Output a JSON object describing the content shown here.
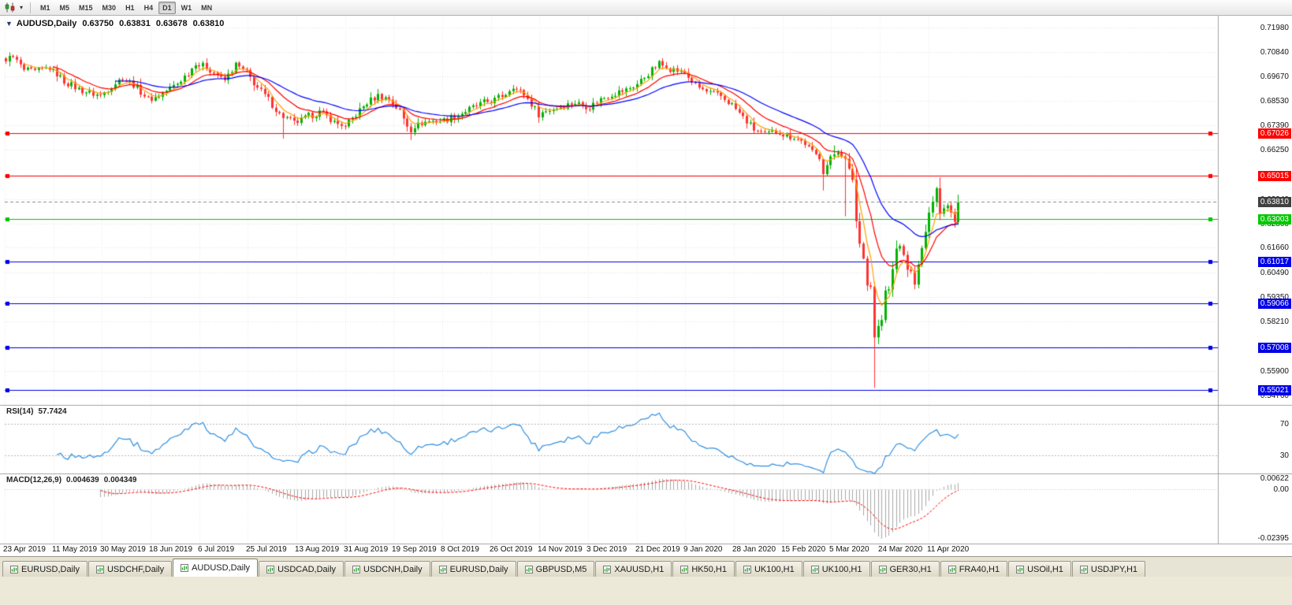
{
  "toolbar": {
    "chart_type_icon": "candlestick-chart-icon",
    "dropdown_icon": "chevron-down-icon",
    "timeframes": [
      "M1",
      "M5",
      "M15",
      "M30",
      "H1",
      "H4",
      "D1",
      "W1",
      "MN"
    ],
    "active_timeframe": "D1"
  },
  "chart_header": {
    "symbol": "AUDUSD,Daily",
    "open": "0.63750",
    "high": "0.63831",
    "low": "0.63678",
    "close": "0.63810"
  },
  "price_axis": {
    "labels": [
      "0.71980",
      "0.70840",
      "0.69670",
      "0.68530",
      "0.67390",
      "0.66250",
      "0.65080",
      "0.63940",
      "0.62800",
      "0.61660",
      "0.60490",
      "0.59350",
      "0.58210",
      "0.57040",
      "0.55900",
      "0.54760"
    ]
  },
  "current_price": {
    "label": "0.63810",
    "value": 0.6381,
    "line_color": "#8a8a8a",
    "badge_color": "#404040"
  },
  "levels": [
    {
      "label": "0.67026",
      "value": 0.67026,
      "color": "#FF0000"
    },
    {
      "label": "0.65015",
      "value": 0.65015,
      "color": "#FF0000"
    },
    {
      "label": "0.63003",
      "value": 0.63003,
      "color": "#00C800"
    },
    {
      "label": "0.61017",
      "value": 0.61017,
      "color": "#0000E6"
    },
    {
      "label": "0.59066",
      "value": 0.59066,
      "color": "#0000E6"
    },
    {
      "label": "0.57008",
      "value": 0.57008,
      "color": "#0000E6"
    },
    {
      "label": "0.55021",
      "value": 0.55021,
      "color": "#0000E6"
    }
  ],
  "rsi": {
    "name": "RSI(14)",
    "value": "57.7424",
    "period": 14,
    "levels": [
      "70",
      "30"
    ],
    "level_values": [
      70,
      30
    ],
    "line_color": "#2F8FE0"
  },
  "macd": {
    "name": "MACD(12,26,9)",
    "main_value": "0.004639",
    "signal_value": "0.004349",
    "fast": 12,
    "slow": 26,
    "signal": 9,
    "axis_labels": [
      "0.00622",
      "0.00",
      "-0.02395"
    ],
    "axis_values": [
      0.00622,
      0,
      -0.02395
    ],
    "histogram_color": "#A8A8A8",
    "signal_color": "#FF0000"
  },
  "chart_data": {
    "type": "candlestick",
    "symbol": "AUDUSD",
    "timeframe": "Daily",
    "title": "AUDUSD,Daily 0.63750 0.63831 0.63678 0.63810",
    "x_labels": [
      "23 Apr 2019",
      "11 May 2019",
      "30 May 2019",
      "18 Jun 2019",
      "6 Jul 2019",
      "25 Jul 2019",
      "13 Aug 2019",
      "31 Aug 2019",
      "19 Sep 2019",
      "8 Oct 2019",
      "26 Oct 2019",
      "14 Nov 2019",
      "3 Dec 2019",
      "21 Dec 2019",
      "9 Jan 2020",
      "28 Jan 2020",
      "15 Feb 2020",
      "5 Mar 2020",
      "24 Mar 2020",
      "11 Apr 2020"
    ],
    "y_axis_range": [
      0.5445,
      0.7215
    ],
    "n_candles": 262,
    "up_color": "#00B200",
    "down_color": "#FF3232",
    "grid": true,
    "overlay_mas": [
      {
        "color": "#FFA000",
        "period": 5
      },
      {
        "color": "#FF0000",
        "period": 13
      },
      {
        "color": "#0000FF",
        "period": 30
      }
    ],
    "approx_close_anchors": [
      [
        0,
        0.7035
      ],
      [
        1,
        0.7068
      ],
      [
        3,
        0.7045
      ],
      [
        5,
        0.6998
      ],
      [
        8,
        0.6988
      ],
      [
        11,
        0.7005
      ],
      [
        13,
        0.6998
      ],
      [
        16,
        0.6945
      ],
      [
        20,
        0.6908
      ],
      [
        23,
        0.689
      ],
      [
        26,
        0.6878
      ],
      [
        29,
        0.6925
      ],
      [
        32,
        0.6962
      ],
      [
        35,
        0.693
      ],
      [
        38,
        0.688
      ],
      [
        40,
        0.6858
      ],
      [
        43,
        0.689
      ],
      [
        47,
        0.6935
      ],
      [
        50,
        0.6985
      ],
      [
        52,
        0.7025
      ],
      [
        55,
        0.7012
      ],
      [
        58,
        0.6975
      ],
      [
        60,
        0.695
      ],
      [
        63,
        0.7022
      ],
      [
        66,
        0.6985
      ],
      [
        69,
        0.6915
      ],
      [
        72,
        0.686
      ],
      [
        75,
        0.679
      ],
      [
        78,
        0.6762
      ],
      [
        80,
        0.6752
      ],
      [
        83,
        0.6782
      ],
      [
        86,
        0.68
      ],
      [
        89,
        0.677
      ],
      [
        91,
        0.6745
      ],
      [
        93,
        0.6732
      ],
      [
        96,
        0.679
      ],
      [
        99,
        0.6845
      ],
      [
        102,
        0.6878
      ],
      [
        105,
        0.6862
      ],
      [
        108,
        0.6805
      ],
      [
        110,
        0.6735
      ],
      [
        111,
        0.671
      ],
      [
        113,
        0.6748
      ],
      [
        116,
        0.6758
      ],
      [
        120,
        0.6762
      ],
      [
        124,
        0.6788
      ],
      [
        128,
        0.6822
      ],
      [
        131,
        0.6845
      ],
      [
        134,
        0.6858
      ],
      [
        137,
        0.6888
      ],
      [
        139,
        0.6915
      ],
      [
        142,
        0.6885
      ],
      [
        146,
        0.6792
      ],
      [
        149,
        0.6812
      ],
      [
        153,
        0.6832
      ],
      [
        156,
        0.6845
      ],
      [
        160,
        0.6825
      ],
      [
        163,
        0.6862
      ],
      [
        166,
        0.6885
      ],
      [
        170,
        0.6905
      ],
      [
        173,
        0.6932
      ],
      [
        176,
        0.6982
      ],
      [
        179,
        0.7028
      ],
      [
        181,
        0.701
      ],
      [
        184,
        0.6995
      ],
      [
        186,
        0.6985
      ],
      [
        189,
        0.6925
      ],
      [
        192,
        0.6895
      ],
      [
        196,
        0.6875
      ],
      [
        199,
        0.6835
      ],
      [
        202,
        0.6775
      ],
      [
        205,
        0.672
      ],
      [
        208,
        0.6695
      ],
      [
        211,
        0.671
      ],
      [
        213,
        0.669
      ],
      [
        216,
        0.6685
      ],
      [
        219,
        0.6655
      ],
      [
        221,
        0.662
      ],
      [
        223,
        0.6585
      ],
      [
        224,
        0.6515
      ],
      [
        226,
        0.659
      ],
      [
        228,
        0.6615
      ],
      [
        230,
        0.658
      ],
      [
        232,
        0.6485
      ],
      [
        233,
        0.629
      ],
      [
        234,
        0.6185
      ],
      [
        235,
        0.612
      ],
      [
        236,
        0.599
      ],
      [
        237,
        0.5985
      ],
      [
        238,
        0.5745
      ],
      [
        239,
        0.58
      ],
      [
        240,
        0.5825
      ],
      [
        241,
        0.5965
      ],
      [
        242,
        0.597
      ],
      [
        243,
        0.6065
      ],
      [
        244,
        0.6165
      ],
      [
        245,
        0.617
      ],
      [
        246,
        0.6135
      ],
      [
        247,
        0.606
      ],
      [
        248,
        0.606
      ],
      [
        249,
        0.599
      ],
      [
        250,
        0.6085
      ],
      [
        251,
        0.6165
      ],
      [
        252,
        0.6235
      ],
      [
        253,
        0.6335
      ],
      [
        254,
        0.6385
      ],
      [
        255,
        0.6445
      ],
      [
        256,
        0.6325
      ],
      [
        257,
        0.6355
      ],
      [
        258,
        0.6365
      ],
      [
        259,
        0.6335
      ],
      [
        260,
        0.629
      ],
      [
        261,
        0.6381
      ]
    ],
    "spikes": [
      {
        "i": 76,
        "low": 0.6677
      },
      {
        "i": 111,
        "low": 0.667
      },
      {
        "i": 224,
        "low": 0.6434
      },
      {
        "i": 227,
        "high": 0.6645
      },
      {
        "i": 230,
        "low": 0.6313
      },
      {
        "i": 238,
        "low": 0.551
      },
      {
        "i": 255,
        "high": 0.6447
      }
    ]
  },
  "tabs": {
    "active_index": 2,
    "items": [
      "EURUSD,Daily",
      "USDCHF,Daily",
      "AUDUSD,Daily",
      "USDCAD,Daily",
      "USDCNH,Daily",
      "EURUSD,Daily",
      "GBPUSD,M5",
      "XAUUSD,H1",
      "HK50,H1",
      "UK100,H1",
      "UK100,H1",
      "GER30,H1",
      "FRA40,H1",
      "USOil,H1",
      "USDJPY,H1"
    ]
  }
}
